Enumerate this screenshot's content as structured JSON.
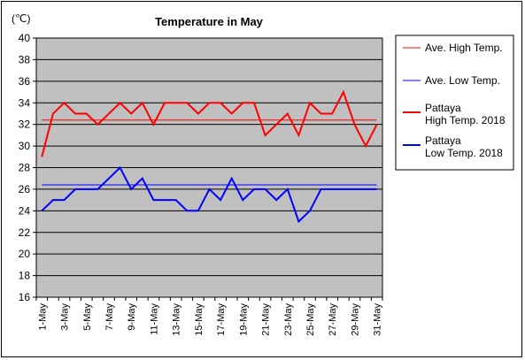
{
  "chart_data": {
    "type": "line",
    "title": "Temperature in May",
    "unit_label": "(℃)",
    "ylim": [
      16,
      40
    ],
    "y_ticks": [
      16,
      18,
      20,
      22,
      24,
      26,
      28,
      30,
      32,
      34,
      36,
      38,
      40
    ],
    "x": [
      1,
      2,
      3,
      4,
      5,
      6,
      7,
      8,
      9,
      10,
      11,
      12,
      13,
      14,
      15,
      16,
      17,
      18,
      19,
      20,
      21,
      22,
      23,
      24,
      25,
      26,
      27,
      28,
      29,
      30,
      31
    ],
    "x_tick_labels": [
      "1-May",
      "3-May",
      "5-May",
      "7-May",
      "9-May",
      "11-May",
      "13-May",
      "15-May",
      "17-May",
      "19-May",
      "21-May",
      "23-May",
      "25-May",
      "27-May",
      "29-May",
      "31-May"
    ],
    "grid": true,
    "legend_position": "right",
    "colors": {
      "plot_background": "#c0c0c0",
      "red": "#ff0000",
      "blue": "#0000ff"
    },
    "series": [
      {
        "name": "Ave. High Temp.",
        "color": "#ff0000",
        "style": "thin",
        "values": [
          32.4,
          32.4,
          32.4,
          32.4,
          32.4,
          32.4,
          32.4,
          32.4,
          32.4,
          32.4,
          32.4,
          32.4,
          32.4,
          32.4,
          32.4,
          32.4,
          32.4,
          32.4,
          32.4,
          32.4,
          32.4,
          32.4,
          32.4,
          32.4,
          32.4,
          32.4,
          32.4,
          32.4,
          32.4,
          32.4,
          32.4
        ]
      },
      {
        "name": "Ave. Low Temp.",
        "color": "#0000ff",
        "style": "thin",
        "values": [
          26.4,
          26.4,
          26.4,
          26.4,
          26.4,
          26.4,
          26.4,
          26.4,
          26.4,
          26.4,
          26.4,
          26.4,
          26.4,
          26.4,
          26.4,
          26.4,
          26.4,
          26.4,
          26.4,
          26.4,
          26.4,
          26.4,
          26.4,
          26.4,
          26.4,
          26.4,
          26.4,
          26.4,
          26.4,
          26.4,
          26.4
        ]
      },
      {
        "name": "Pattaya High Temp. 2018",
        "name_lines": [
          "Pattaya",
          "High Temp. 2018"
        ],
        "color": "#ff0000",
        "style": "thick",
        "values": [
          29,
          33,
          34,
          33,
          33,
          32,
          33,
          34,
          33,
          34,
          32,
          34,
          34,
          34,
          33,
          34,
          34,
          33,
          34,
          34,
          31,
          32,
          33,
          31,
          34,
          33,
          33,
          35,
          32,
          30,
          32
        ]
      },
      {
        "name": "Pattaya Low Temp. 2018",
        "name_lines": [
          "Pattaya",
          "Low Temp. 2018"
        ],
        "color": "#0000ff",
        "style": "thick",
        "values": [
          24,
          25,
          25,
          26,
          26,
          26,
          27,
          28,
          26,
          27,
          25,
          25,
          25,
          24,
          24,
          26,
          25,
          27,
          25,
          26,
          26,
          25,
          26,
          23,
          24,
          26,
          26,
          26,
          26,
          26,
          26
        ]
      }
    ]
  }
}
